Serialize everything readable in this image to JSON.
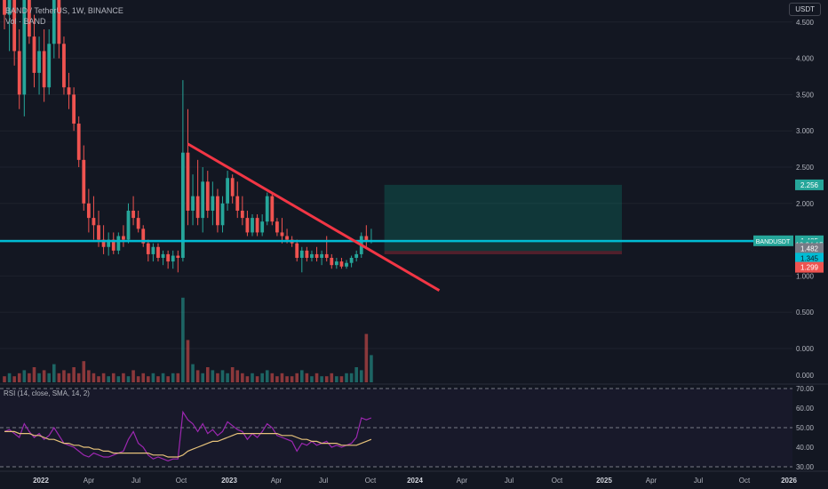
{
  "header": {
    "title": "BAND / TetherUS, 1W, BINANCE",
    "volume": "Vol · BAND"
  },
  "currency_button": "USDT",
  "colors": {
    "background": "#131722",
    "up": "#26a69a",
    "down": "#ef5350",
    "trendline": "#f23645",
    "hline": "#00bcd4",
    "rsi": "#9c27b0",
    "rsi_ma": "#e6c27a"
  },
  "chart_data": {
    "type": "candlestick",
    "symbol": "BAND / TetherUS",
    "interval": "1W",
    "exchange": "BINANCE",
    "price_axis": {
      "ticks": [
        "4.500",
        "4.000",
        "3.500",
        "3.000",
        "2.500",
        "2.000",
        "1.500",
        "1.000",
        "0.500",
        "0.000"
      ],
      "unit": "USDT"
    },
    "time_axis": {
      "ticks": [
        "2022",
        "Apr",
        "Jul",
        "Oct",
        "2023",
        "Apr",
        "Jul",
        "Oct",
        "2024",
        "Apr",
        "Jul",
        "Oct",
        "2025",
        "Apr",
        "Jul",
        "Oct",
        "2026"
      ]
    },
    "price_labels": [
      {
        "text": "2.256",
        "price": 2.256,
        "kind": "target"
      },
      {
        "text": "1.485",
        "price": 1.485,
        "kind": "last"
      },
      {
        "text": "12:24:15",
        "price": 1.43,
        "kind": "countdown"
      },
      {
        "text": "1.482",
        "price": 1.38,
        "kind": "hline"
      },
      {
        "text": "1.345",
        "price": 1.245,
        "kind": "entry"
      },
      {
        "text": "1.299",
        "price": 1.12,
        "kind": "stop"
      }
    ],
    "symbol_tag": "BANDUSDT",
    "candles": [
      [
        5.2,
        5.5,
        4.4,
        4.6
      ],
      [
        4.6,
        5.2,
        4.1,
        4.9
      ],
      [
        4.9,
        5.0,
        3.9,
        4.1
      ],
      [
        4.1,
        4.4,
        3.3,
        3.5
      ],
      [
        3.5,
        5.2,
        3.2,
        4.9
      ],
      [
        4.9,
        5.1,
        4.2,
        4.3
      ],
      [
        4.3,
        4.6,
        3.6,
        3.8
      ],
      [
        3.8,
        4.3,
        3.5,
        4.1
      ],
      [
        4.1,
        4.4,
        3.4,
        3.6
      ],
      [
        3.6,
        4.4,
        3.5,
        4.2
      ],
      [
        4.2,
        5.2,
        4.0,
        4.9
      ],
      [
        4.9,
        5.1,
        4.0,
        4.2
      ],
      [
        4.2,
        4.3,
        3.5,
        3.6
      ],
      [
        3.6,
        3.8,
        3.3,
        3.5
      ],
      [
        3.5,
        3.6,
        3.0,
        3.1
      ],
      [
        3.1,
        3.2,
        2.5,
        2.6
      ],
      [
        2.6,
        2.8,
        1.9,
        2.0
      ],
      [
        2.0,
        2.2,
        1.6,
        1.8
      ],
      [
        1.8,
        2.1,
        1.5,
        1.7
      ],
      [
        1.7,
        1.9,
        1.4,
        1.5
      ],
      [
        1.5,
        1.7,
        1.3,
        1.4
      ],
      [
        1.4,
        1.6,
        1.28,
        1.5
      ],
      [
        1.5,
        1.6,
        1.3,
        1.35
      ],
      [
        1.35,
        1.6,
        1.3,
        1.55
      ],
      [
        1.55,
        1.7,
        1.4,
        1.5
      ],
      [
        1.5,
        2.0,
        1.45,
        1.9
      ],
      [
        1.9,
        2.1,
        1.7,
        1.8
      ],
      [
        1.8,
        1.9,
        1.6,
        1.65
      ],
      [
        1.65,
        1.7,
        1.4,
        1.45
      ],
      [
        1.45,
        1.5,
        1.2,
        1.3
      ],
      [
        1.3,
        1.45,
        1.2,
        1.4
      ],
      [
        1.4,
        1.45,
        1.2,
        1.25
      ],
      [
        1.25,
        1.35,
        1.15,
        1.3
      ],
      [
        1.3,
        1.35,
        1.1,
        1.2
      ],
      [
        1.2,
        1.35,
        1.1,
        1.28
      ],
      [
        1.28,
        1.35,
        1.05,
        1.25
      ],
      [
        1.25,
        3.7,
        1.2,
        2.7
      ],
      [
        2.7,
        3.3,
        1.7,
        1.9
      ],
      [
        1.9,
        2.4,
        1.7,
        2.1
      ],
      [
        2.1,
        2.6,
        1.7,
        1.8
      ],
      [
        1.8,
        2.5,
        1.6,
        2.3
      ],
      [
        2.3,
        2.45,
        1.8,
        1.9
      ],
      [
        1.9,
        2.3,
        1.7,
        2.1
      ],
      [
        2.1,
        2.2,
        1.6,
        1.7
      ],
      [
        1.7,
        2.1,
        1.6,
        2.0
      ],
      [
        2.0,
        2.45,
        1.9,
        2.35
      ],
      [
        2.35,
        2.4,
        2.0,
        2.1
      ],
      [
        2.1,
        2.3,
        1.8,
        1.9
      ],
      [
        1.9,
        2.1,
        1.7,
        1.8
      ],
      [
        1.8,
        1.9,
        1.55,
        1.6
      ],
      [
        1.6,
        1.85,
        1.55,
        1.8
      ],
      [
        1.8,
        1.85,
        1.55,
        1.6
      ],
      [
        1.6,
        1.85,
        1.55,
        1.75
      ],
      [
        1.75,
        2.15,
        1.7,
        2.1
      ],
      [
        2.1,
        2.15,
        1.7,
        1.75
      ],
      [
        1.75,
        1.8,
        1.55,
        1.6
      ],
      [
        1.6,
        1.8,
        1.45,
        1.55
      ],
      [
        1.55,
        1.65,
        1.45,
        1.5
      ],
      [
        1.5,
        1.55,
        1.4,
        1.45
      ],
      [
        1.45,
        1.5,
        1.2,
        1.25
      ],
      [
        1.25,
        1.4,
        1.05,
        1.35
      ],
      [
        1.35,
        1.4,
        1.2,
        1.25
      ],
      [
        1.25,
        1.35,
        1.2,
        1.3
      ],
      [
        1.3,
        1.4,
        1.2,
        1.25
      ],
      [
        1.25,
        1.35,
        1.15,
        1.3
      ],
      [
        1.3,
        1.55,
        1.2,
        1.25
      ],
      [
        1.25,
        1.3,
        1.1,
        1.15
      ],
      [
        1.15,
        1.25,
        1.1,
        1.2
      ],
      [
        1.2,
        1.25,
        1.1,
        1.13
      ],
      [
        1.13,
        1.22,
        1.1,
        1.18
      ],
      [
        1.18,
        1.28,
        1.12,
        1.25
      ],
      [
        1.25,
        1.35,
        1.2,
        1.3
      ],
      [
        1.3,
        1.6,
        1.25,
        1.55
      ],
      [
        1.55,
        1.7,
        1.4,
        1.48
      ],
      [
        1.48,
        1.65,
        1.45,
        1.485
      ]
    ],
    "volumes": [
      2,
      3,
      2,
      3,
      4,
      3,
      5,
      3,
      4,
      3,
      6,
      3,
      4,
      3,
      5,
      3,
      7,
      4,
      3,
      2,
      3,
      2,
      3,
      2,
      3,
      2,
      4,
      2,
      3,
      2,
      3,
      2,
      3,
      2,
      3,
      3,
      28,
      14,
      6,
      4,
      3,
      5,
      4,
      3,
      4,
      3,
      5,
      4,
      3,
      2,
      3,
      2,
      3,
      4,
      3,
      2,
      3,
      2,
      2,
      3,
      4,
      3,
      2,
      3,
      2,
      2,
      3,
      2,
      2,
      3,
      3,
      5,
      4,
      16,
      9
    ],
    "volume_axis": {
      "ticks": [
        "0.000"
      ]
    },
    "rsi": {
      "label": "RSI (14, close, SMA, 14, 2)",
      "ylim": [
        30,
        70
      ],
      "ticks": [
        "70.00",
        "60.00",
        "50.00",
        "40.00",
        "30.00"
      ],
      "bands": [
        70,
        50,
        30
      ],
      "values": [
        48,
        49,
        47,
        45,
        52,
        48,
        45,
        47,
        44,
        46,
        50,
        46,
        42,
        41,
        40,
        38,
        36,
        35,
        37,
        36,
        35,
        35,
        36,
        37,
        38,
        44,
        48,
        42,
        40,
        36,
        34,
        35,
        34,
        33,
        34,
        34,
        58,
        54,
        52,
        48,
        52,
        47,
        49,
        46,
        48,
        53,
        51,
        49,
        48,
        44,
        47,
        45,
        48,
        52,
        50,
        46,
        45,
        44,
        43,
        38,
        42,
        41,
        43,
        41,
        42,
        43,
        40,
        41,
        40,
        41,
        42,
        45,
        55,
        54,
        55
      ],
      "ma": [
        48,
        48,
        48,
        47,
        47,
        47,
        46,
        46,
        45,
        44,
        44,
        43,
        42,
        42,
        41,
        41,
        40,
        40,
        39,
        39,
        38,
        38,
        37,
        37,
        37,
        37,
        37,
        37,
        37,
        37,
        36,
        36,
        36,
        35,
        35,
        35,
        36,
        38,
        39,
        40,
        41,
        42,
        43,
        43,
        44,
        45,
        46,
        47,
        47,
        47,
        47,
        47,
        47,
        47,
        47,
        47,
        46,
        46,
        46,
        45,
        44,
        44,
        43,
        43,
        42,
        42,
        42,
        42,
        41,
        41,
        41,
        41,
        42,
        43,
        44
      ]
    },
    "drawings": {
      "trendline": {
        "from": {
          "index": 37,
          "price": 2.82
        },
        "to": {
          "index": 87,
          "price": 0.8
        }
      },
      "horizontal_line": {
        "price": 1.482
      },
      "position": {
        "start_index": 77,
        "end_index": 100,
        "entry": 1.345,
        "target": 2.256,
        "stop": 1.299
      }
    }
  }
}
